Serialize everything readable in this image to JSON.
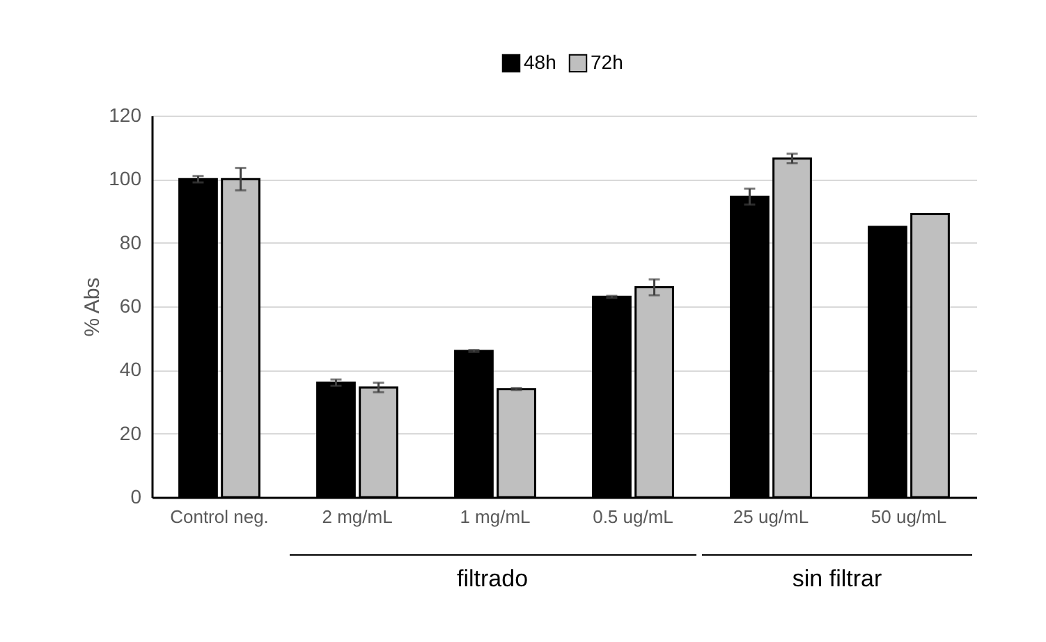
{
  "chart_data": {
    "type": "bar",
    "ylabel": "% Abs",
    "categories": [
      "Control neg.",
      "2 mg/mL",
      "1 mg/mL",
      "0.5 ug/mL",
      "25 ug/mL",
      "50 ug/mL"
    ],
    "series": [
      {
        "name": "48h",
        "color": "#000000",
        "values": [
          100,
          36,
          46,
          63,
          94.5,
          85
        ],
        "errors": [
          1,
          1,
          0.3,
          0.3,
          2.5,
          null
        ]
      },
      {
        "name": "72h",
        "color": "#bfbfbf",
        "values": [
          100,
          34.5,
          34,
          66,
          106.5,
          89
        ],
        "errors": [
          3.5,
          1.5,
          0.3,
          2.5,
          1.5,
          null
        ]
      }
    ],
    "ylim": [
      0,
      120
    ],
    "yticks": [
      0,
      20,
      40,
      60,
      80,
      100,
      120
    ],
    "grid": "y",
    "legend": "top",
    "annotations": [
      "filtrado",
      "sin filtrar"
    ]
  }
}
